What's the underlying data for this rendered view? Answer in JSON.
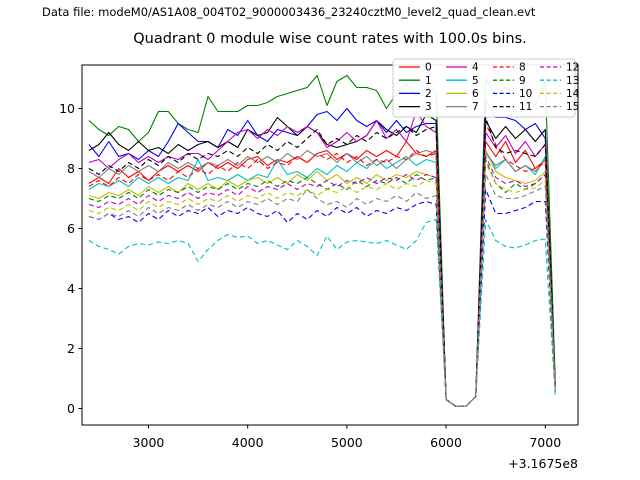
{
  "figure": {
    "header": "Data file: modeM0/AS1A08_004T02_9000003436_23240cztM0_level2_quad_clean.evt",
    "title": "Quadrant 0 module wise count rates with 100.0s bins."
  },
  "chart_data": {
    "type": "line",
    "title": "Quadrant 0 module wise count rates with 100.0s bins.",
    "xlabel": "",
    "ylabel": "",
    "x_offset_text": "+3.1675e8",
    "xlim": [
      2330,
      7330
    ],
    "ylim": [
      -0.55,
      11.45
    ],
    "xticks": [
      3000,
      4000,
      5000,
      6000,
      7000
    ],
    "yticks": [
      0,
      2,
      4,
      6,
      8,
      10
    ],
    "grid": false,
    "legend_position": "upper right",
    "legend_columns": 4,
    "x": [
      2400,
      2500,
      2600,
      2700,
      2800,
      2900,
      3000,
      3100,
      3200,
      3300,
      3400,
      3500,
      3600,
      3700,
      3800,
      3900,
      4000,
      4100,
      4200,
      4300,
      4400,
      4500,
      4600,
      4700,
      4800,
      4900,
      5000,
      5100,
      5200,
      5300,
      5400,
      5500,
      5600,
      5700,
      5800,
      5900,
      6000,
      6100,
      6200,
      6300,
      6400,
      6500,
      6600,
      6700,
      6800,
      6900,
      7000,
      7100
    ],
    "series": [
      {
        "name": "0",
        "color": "#ff0000",
        "linestyle": "solid",
        "values": [
          7.5,
          7.7,
          7.5,
          8.0,
          7.7,
          7.9,
          7.6,
          7.9,
          8.1,
          7.9,
          8.1,
          7.9,
          8.2,
          8.0,
          8.2,
          8.0,
          8.3,
          8.4,
          8.1,
          8.3,
          8.2,
          8.4,
          8.2,
          8.5,
          8.6,
          8.3,
          8.5,
          8.3,
          8.6,
          8.4,
          8.6,
          8.4,
          8.9,
          8.5,
          8.4,
          8.6,
          0.3,
          0.07,
          0.07,
          0.4,
          8.9,
          8.4,
          8.9,
          8.2,
          8.6,
          8.0,
          8.3,
          0.7
        ]
      },
      {
        "name": "1",
        "color": "#008000",
        "linestyle": "solid",
        "values": [
          9.6,
          9.3,
          9.1,
          9.4,
          9.3,
          8.9,
          9.2,
          9.9,
          9.9,
          9.5,
          9.3,
          9.2,
          10.4,
          9.9,
          9.9,
          9.9,
          10.1,
          10.1,
          10.2,
          10.4,
          10.5,
          10.6,
          10.7,
          11.1,
          10.1,
          10.9,
          11.1,
          10.7,
          10.7,
          10.6,
          10.0,
          10.5,
          10.8,
          10.4,
          10.7,
          10.6,
          0.3,
          0.07,
          0.07,
          0.4,
          11.0,
          10.4,
          10.7,
          10.5,
          10.3,
          10.1,
          10.9,
          1.0
        ]
      },
      {
        "name": "2",
        "color": "#0000ff",
        "linestyle": "solid",
        "values": [
          8.8,
          8.4,
          8.9,
          8.4,
          8.5,
          8.3,
          8.6,
          8.4,
          8.9,
          9.5,
          9.2,
          8.9,
          8.9,
          8.7,
          9.3,
          9.1,
          9.6,
          9.1,
          8.9,
          9.3,
          9.2,
          9.1,
          9.4,
          9.8,
          9.9,
          9.6,
          10.0,
          9.6,
          9.4,
          9.6,
          9.2,
          9.6,
          9.2,
          9.4,
          9.5,
          9.5,
          0.3,
          0.07,
          0.07,
          0.4,
          10.3,
          9.7,
          9.7,
          9.6,
          9.3,
          9.5,
          9.0,
          0.85
        ]
      },
      {
        "name": "3",
        "color": "#000000",
        "linestyle": "solid",
        "values": [
          8.6,
          8.8,
          9.2,
          8.8,
          8.6,
          8.9,
          8.6,
          8.7,
          8.5,
          8.8,
          8.6,
          8.8,
          8.9,
          8.7,
          8.9,
          8.7,
          9.3,
          9.1,
          9.2,
          9.7,
          9.4,
          9.1,
          9.4,
          9.2,
          8.8,
          8.7,
          8.8,
          8.9,
          9.1,
          9.6,
          9.3,
          9.1,
          9.4,
          9.2,
          9.8,
          9.6,
          0.3,
          0.07,
          0.07,
          0.4,
          9.6,
          9.0,
          9.4,
          9.0,
          9.3,
          8.9,
          9.3,
          0.8
        ]
      },
      {
        "name": "4",
        "color": "#bf00bf",
        "linestyle": "solid",
        "values": [
          8.2,
          8.3,
          8.0,
          8.3,
          8.5,
          8.2,
          8.4,
          8.2,
          8.4,
          8.3,
          8.5,
          8.5,
          8.3,
          8.6,
          8.9,
          9.2,
          9.3,
          9.0,
          9.3,
          9.1,
          9.4,
          9.2,
          9.4,
          9.2,
          8.7,
          8.9,
          9.2,
          8.9,
          9.1,
          9.6,
          9.0,
          9.3,
          8.9,
          9.9,
          9.4,
          9.2,
          0.3,
          0.07,
          0.07,
          0.4,
          9.2,
          8.7,
          9.1,
          8.5,
          8.9,
          8.4,
          8.8,
          0.75
        ]
      },
      {
        "name": "5",
        "color": "#00bfbf",
        "linestyle": "solid",
        "values": [
          7.3,
          7.5,
          7.4,
          7.6,
          7.4,
          7.7,
          7.5,
          7.7,
          7.5,
          7.7,
          7.6,
          8.3,
          7.6,
          7.7,
          7.6,
          7.8,
          7.6,
          7.8,
          7.7,
          8.3,
          7.8,
          7.9,
          7.7,
          8.0,
          7.8,
          8.1,
          7.9,
          8.2,
          8.0,
          8.3,
          8.0,
          8.2,
          8.4,
          8.1,
          8.3,
          8.2,
          0.3,
          0.07,
          0.07,
          0.4,
          8.6,
          8.0,
          8.3,
          7.9,
          8.1,
          7.8,
          8.4,
          0.65
        ]
      },
      {
        "name": "6",
        "color": "#bfbf00",
        "linestyle": "solid",
        "values": [
          7.1,
          7.0,
          7.2,
          7.1,
          7.3,
          7.1,
          7.4,
          7.2,
          7.4,
          7.2,
          7.5,
          7.3,
          7.5,
          7.3,
          7.6,
          7.4,
          7.6,
          7.7,
          7.5,
          7.7,
          7.5,
          7.8,
          7.6,
          7.9,
          7.6,
          7.8,
          7.5,
          7.7,
          7.5,
          7.8,
          7.6,
          7.8,
          7.7,
          7.9,
          7.8,
          7.7,
          0.3,
          0.07,
          0.07,
          0.4,
          8.6,
          7.9,
          7.7,
          7.6,
          7.5,
          7.6,
          7.9,
          0.6
        ]
      },
      {
        "name": "7",
        "color": "#7f7f7f",
        "linestyle": "solid",
        "values": [
          7.9,
          7.7,
          8.0,
          7.8,
          8.1,
          7.9,
          8.1,
          7.9,
          8.2,
          8.0,
          8.2,
          8.0,
          8.2,
          8.1,
          8.3,
          8.1,
          8.4,
          8.2,
          8.4,
          8.2,
          8.5,
          8.3,
          8.6,
          8.4,
          8.5,
          8.2,
          8.5,
          8.2,
          8.4,
          8.1,
          8.3,
          8.0,
          8.3,
          8.5,
          8.6,
          8.5,
          0.3,
          0.07,
          0.07,
          0.4,
          8.5,
          8.1,
          8.3,
          7.9,
          8.1,
          7.9,
          8.3,
          0.7
        ]
      },
      {
        "name": "8",
        "color": "#ff0000",
        "linestyle": "dashed",
        "values": [
          7.4,
          7.6,
          7.4,
          7.7,
          7.5,
          7.8,
          7.6,
          7.8,
          7.6,
          7.9,
          7.7,
          8.0,
          7.8,
          8.1,
          7.9,
          8.2,
          8.0,
          8.3,
          8.0,
          8.2,
          8.1,
          8.4,
          8.2,
          8.5,
          8.3,
          8.5,
          8.2,
          8.4,
          8.1,
          8.3,
          8.2,
          8.4,
          8.3,
          8.6,
          8.4,
          8.5,
          0.3,
          0.07,
          0.07,
          0.4,
          9.5,
          8.8,
          8.3,
          8.1,
          7.9,
          8.0,
          8.2,
          0.7
        ]
      },
      {
        "name": "9",
        "color": "#008000",
        "linestyle": "dashed",
        "values": [
          7.0,
          6.9,
          7.1,
          7.0,
          7.2,
          7.0,
          7.3,
          7.1,
          7.3,
          7.2,
          7.4,
          7.2,
          7.4,
          7.3,
          7.5,
          7.3,
          7.5,
          7.4,
          7.6,
          7.4,
          7.6,
          7.5,
          7.7,
          7.5,
          7.3,
          7.5,
          7.3,
          7.6,
          7.4,
          7.6,
          7.5,
          7.7,
          7.5,
          7.8,
          7.6,
          7.7,
          0.3,
          0.07,
          0.07,
          0.4,
          8.3,
          7.5,
          7.2,
          7.5,
          7.3,
          7.5,
          7.8,
          0.6
        ]
      },
      {
        "name": "10",
        "color": "#0000ff",
        "linestyle": "dashed",
        "values": [
          6.4,
          6.3,
          6.5,
          6.3,
          6.4,
          6.2,
          6.5,
          6.3,
          6.6,
          6.4,
          6.6,
          6.5,
          6.7,
          6.4,
          6.6,
          6.5,
          6.7,
          6.5,
          6.4,
          6.6,
          6.2,
          6.5,
          6.3,
          6.6,
          6.4,
          6.7,
          6.5,
          6.7,
          6.4,
          6.6,
          6.5,
          6.7,
          6.6,
          6.8,
          6.9,
          6.8,
          0.3,
          0.07,
          0.07,
          0.4,
          7.3,
          6.5,
          6.5,
          6.6,
          6.7,
          6.9,
          6.9,
          0.55
        ]
      },
      {
        "name": "11",
        "color": "#000000",
        "linestyle": "dashed",
        "values": [
          8.0,
          7.8,
          8.1,
          7.9,
          8.2,
          8.0,
          8.3,
          8.1,
          8.4,
          8.2,
          8.5,
          8.3,
          8.5,
          8.4,
          8.6,
          8.4,
          8.7,
          8.5,
          8.8,
          8.6,
          8.9,
          8.7,
          9.0,
          9.3,
          8.8,
          9.0,
          8.8,
          9.1,
          8.9,
          9.2,
          9.0,
          9.2,
          9.4,
          9.1,
          9.3,
          9.4,
          0.3,
          0.07,
          0.07,
          0.4,
          9.7,
          8.7,
          8.5,
          8.6,
          8.5,
          8.4,
          8.8,
          0.75
        ]
      },
      {
        "name": "12",
        "color": "#bf00bf",
        "linestyle": "dashed",
        "values": [
          6.8,
          6.7,
          6.9,
          6.8,
          7.0,
          6.8,
          7.1,
          6.9,
          7.1,
          7.0,
          7.2,
          7.0,
          7.2,
          7.1,
          7.3,
          7.1,
          7.4,
          7.2,
          7.4,
          7.3,
          7.5,
          7.3,
          7.5,
          7.4,
          7.6,
          7.4,
          7.6,
          7.5,
          7.7,
          7.5,
          7.7,
          7.6,
          7.8,
          7.6,
          7.8,
          7.7,
          0.3,
          0.07,
          0.07,
          0.4,
          8.4,
          7.7,
          7.5,
          7.6,
          7.4,
          7.5,
          7.8,
          0.6
        ]
      },
      {
        "name": "13",
        "color": "#00bfbf",
        "linestyle": "dashed",
        "values": [
          5.6,
          5.4,
          5.3,
          5.15,
          5.4,
          5.5,
          5.45,
          5.55,
          5.5,
          5.6,
          5.5,
          4.9,
          5.3,
          5.6,
          5.8,
          5.7,
          5.75,
          5.5,
          5.6,
          5.45,
          5.3,
          5.6,
          5.4,
          5.1,
          5.75,
          5.3,
          5.55,
          5.6,
          5.55,
          5.5,
          5.6,
          5.45,
          5.3,
          5.6,
          6.2,
          6.3,
          0.3,
          0.07,
          0.07,
          0.4,
          6.3,
          5.6,
          5.4,
          5.35,
          5.45,
          5.6,
          5.65,
          0.45
        ]
      },
      {
        "name": "14",
        "color": "#bfbf00",
        "linestyle": "dashed",
        "values": [
          6.6,
          6.5,
          6.7,
          6.6,
          6.8,
          6.6,
          6.9,
          6.7,
          6.9,
          6.8,
          7.0,
          6.8,
          7.0,
          6.9,
          7.1,
          6.9,
          7.1,
          7.0,
          7.2,
          7.0,
          7.2,
          7.1,
          7.3,
          7.1,
          7.3,
          7.2,
          7.4,
          7.2,
          7.4,
          7.3,
          7.5,
          7.3,
          7.5,
          7.4,
          7.6,
          7.5,
          0.3,
          0.07,
          0.07,
          0.4,
          8.2,
          7.5,
          7.3,
          7.2,
          7.3,
          7.35,
          7.6,
          0.6
        ]
      },
      {
        "name": "15",
        "color": "#7f7f7f",
        "linestyle": "dashed",
        "values": [
          6.4,
          6.3,
          6.5,
          6.4,
          6.6,
          6.4,
          6.7,
          6.5,
          6.7,
          6.6,
          6.8,
          6.6,
          6.8,
          6.7,
          6.9,
          6.7,
          6.9,
          6.8,
          7.0,
          6.8,
          7.0,
          6.9,
          7.3,
          7.0,
          6.8,
          6.9,
          6.7,
          7.0,
          6.8,
          7.0,
          6.9,
          7.1,
          6.9,
          7.2,
          7.0,
          7.1,
          0.3,
          0.07,
          0.07,
          0.4,
          7.8,
          7.1,
          7.0,
          7.0,
          7.1,
          7.25,
          7.4,
          0.6
        ]
      }
    ]
  }
}
